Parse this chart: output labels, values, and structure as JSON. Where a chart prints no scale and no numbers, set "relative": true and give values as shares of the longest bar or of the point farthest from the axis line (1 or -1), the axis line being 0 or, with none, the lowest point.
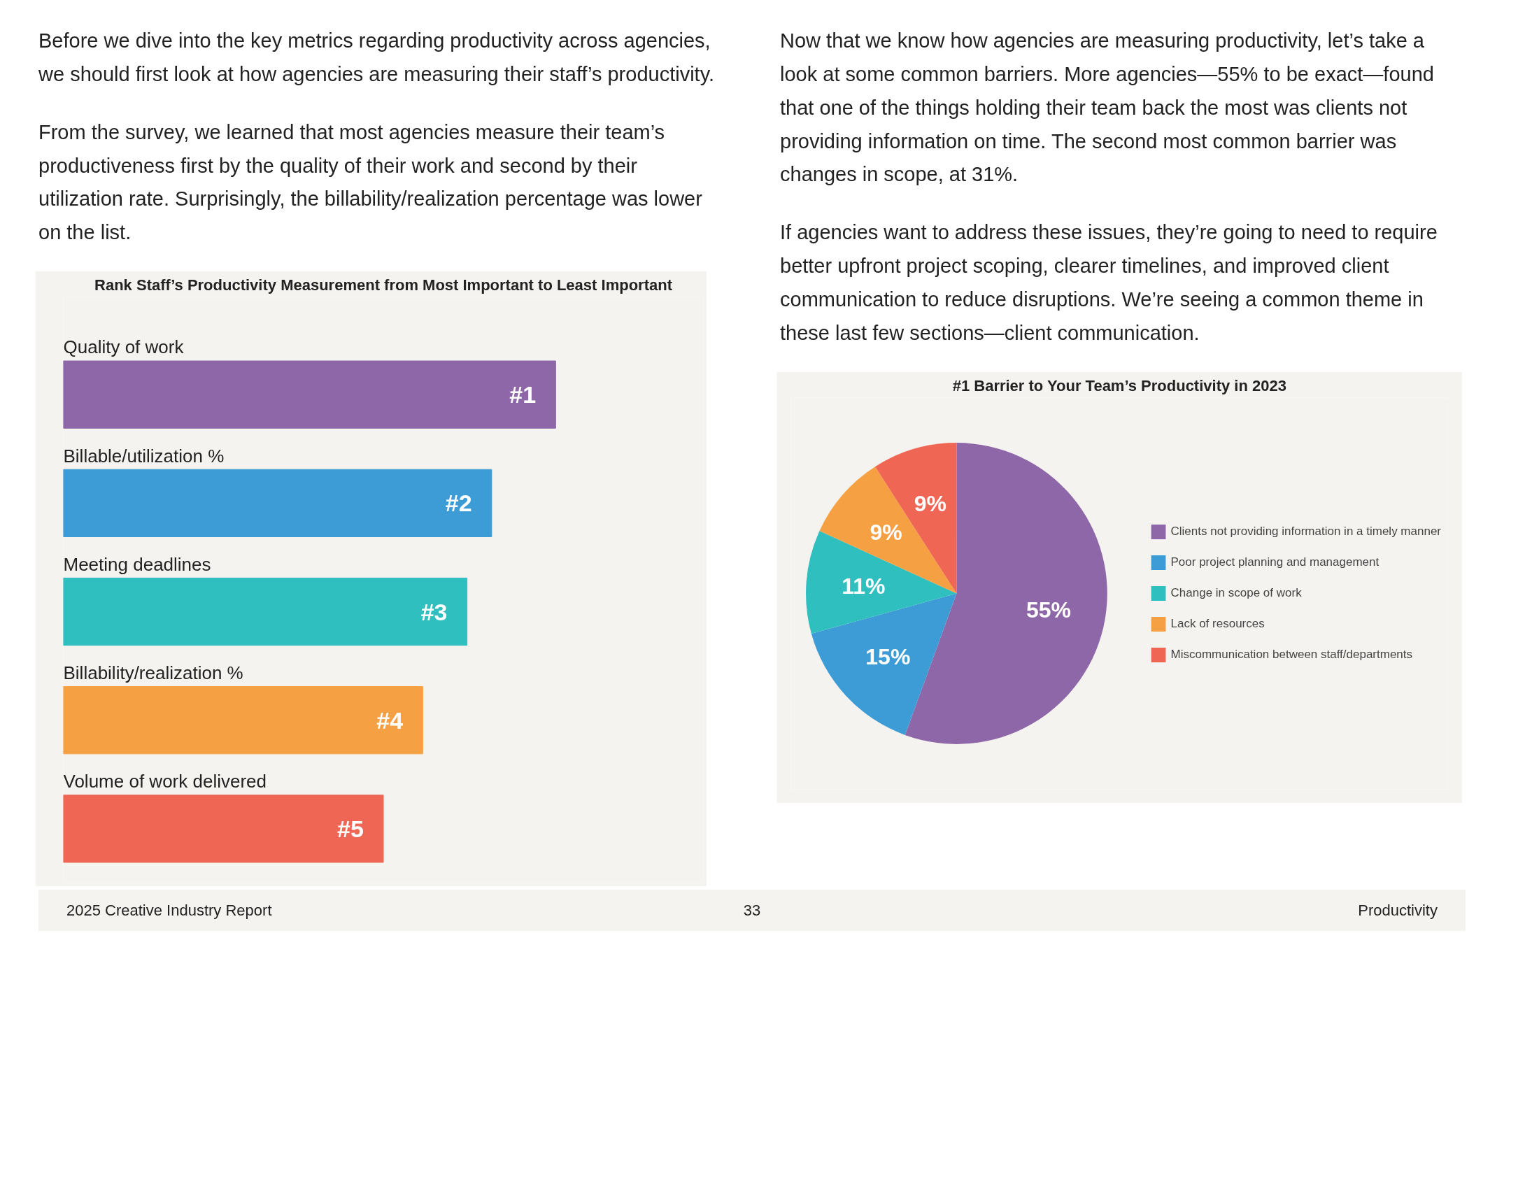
{
  "chart_data": [
    {
      "type": "bar",
      "orientation": "horizontal",
      "relative": true,
      "title": "Rank Staff’s Productivity Measurement from Most Important to Least Important",
      "categories": [
        "Quality of work",
        "Billable/utilization %",
        "Meeting deadlines",
        "Billability/realization %",
        "Volume of work delivered"
      ],
      "values": [
        1,
        0.87,
        0.82,
        0.73,
        0.65
      ],
      "colors": [
        "#8e67a8",
        "#3d9bd6",
        "#2fbfbf",
        "#f5a042",
        "#ef6655"
      ],
      "annotations": [
        {
          "text": "#1",
          "x": 1,
          "y": "Quality of work"
        },
        {
          "text": "#2",
          "x": 0.87,
          "y": "Billable/utilization %"
        },
        {
          "text": "#3",
          "x": 0.82,
          "y": "Meeting deadlines"
        },
        {
          "text": "#4",
          "x": 0.73,
          "y": "Billability/realization %"
        },
        {
          "text": "#5",
          "x": 0.65,
          "y": "Volume of work delivered"
        },
        "Before we dive into the key metrics regarding productivity across agencies, we should first look at how agencies are measuring their staff’s productivity.",
        "From the survey, we learned that most agencies measure their team’s productiveness first by the quality of their work and second by their utilization rate. Surprisingly, the billability/realization percentage was lower on the list."
      ]
    },
    {
      "type": "pie",
      "title": "#1 Barrier to Your Team’s Productivity in 2023",
      "categories": [
        "Clients not providing information in a timely manner",
        "Poor project planning and management",
        "Change in scope of work",
        "Lack of resources",
        "Miscommunication between staff/departments"
      ],
      "values": [
        55,
        15,
        11,
        9,
        9
      ],
      "colors": [
        "#8e67a8",
        "#3d9bd6",
        "#2fbfbf",
        "#f5a042",
        "#ef6655"
      ],
      "value_labels": [
        "55%",
        "15%",
        "11%",
        "9%",
        "9%"
      ],
      "legend": "right",
      "annotations": [
        "Now that we know how agencies are measuring productivity, let’s take a look at some common barriers. More agencies—55% to be exact—found that one of the things holding their team back the most was clients not providing information on time. The second most common barrier was changes in scope, at 31%.",
        "If agencies want to address these issues, they’re going to need to require better upfront project scoping, clearer timelines, and improved client communication to reduce disruptions. We’re  seeing a common theme in these last few sections—client communication.",
        "2025 Creative Industry Report",
        "33",
        "Productivity"
      ]
    }
  ]
}
